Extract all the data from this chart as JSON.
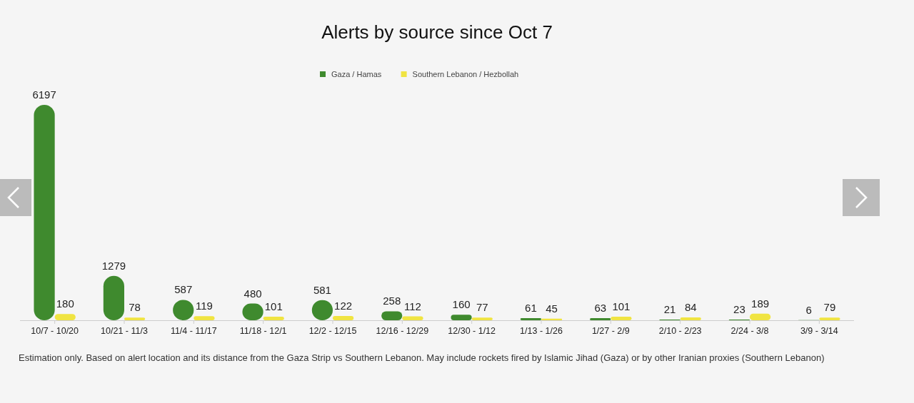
{
  "chart_data": {
    "type": "bar",
    "title": "Alerts by source since Oct 7",
    "categories": [
      "10/7 - 10/20",
      "10/21 - 11/3",
      "11/4 - 11/17",
      "11/18 - 12/1",
      "12/2 - 12/15",
      "12/16 - 12/29",
      "12/30 - 1/12",
      "1/13 - 1/26",
      "1/27 - 2/9",
      "2/10 - 2/23",
      "2/24 - 3/8",
      "3/9 - 3/14"
    ],
    "series": [
      {
        "name": "Gaza / Hamas",
        "color": "#3f8a2e",
        "values": [
          6197,
          1279,
          587,
          480,
          581,
          258,
          160,
          61,
          63,
          21,
          23,
          6
        ]
      },
      {
        "name": "Southern Lebanon / Hezbollah",
        "color": "#f0e442",
        "values": [
          180,
          78,
          119,
          101,
          122,
          112,
          77,
          45,
          101,
          84,
          189,
          79
        ]
      }
    ],
    "data_labels": true,
    "legend": "top",
    "grid": false,
    "annotations": [
      "Estimation only. Based on alert location and its distance from the Gaza Strip vs Southern Lebanon. May include rockets fired by Islamic Jihad (Gaza) or by other Iranian proxies (Southern Lebanon)"
    ]
  }
}
